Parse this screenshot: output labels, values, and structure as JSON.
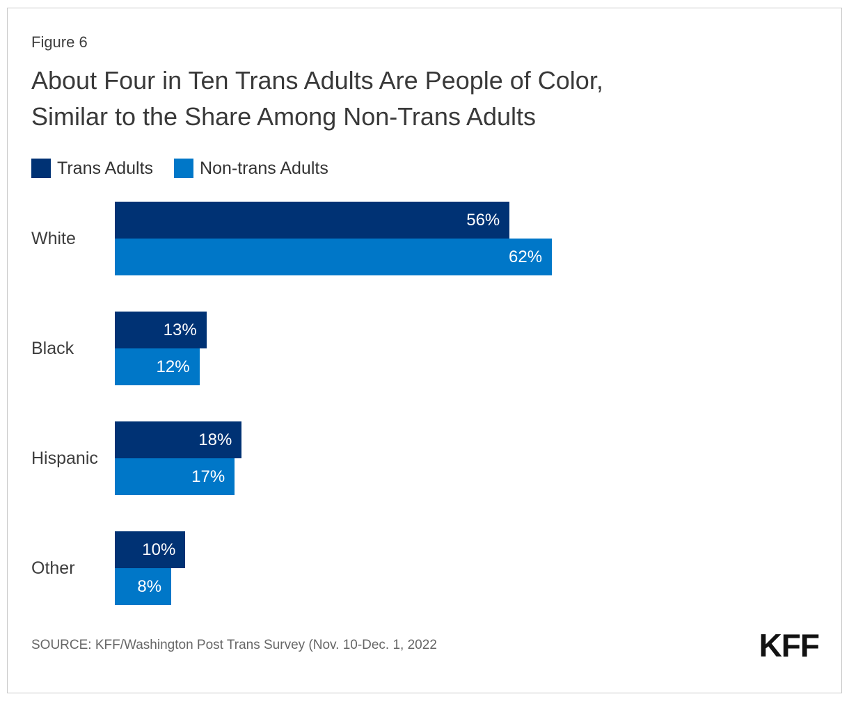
{
  "figure_label": "Figure 6",
  "title": {
    "line1": "About Four in Ten Trans Adults Are People of Color,",
    "line2": "Similar to the Share Among Non-Trans Adults"
  },
  "legend": {
    "items": [
      {
        "label": "Trans Adults",
        "color": "#003274"
      },
      {
        "label": "Non-trans Adults",
        "color": "#0077C8"
      }
    ]
  },
  "chart_data": {
    "type": "bar",
    "orientation": "horizontal",
    "title": "About Four in Ten Trans Adults Are People of Color, Similar to the Share Among Non-Trans Adults",
    "categories": [
      "White",
      "Black",
      "Hispanic",
      "Other"
    ],
    "series": [
      {
        "name": "Trans Adults",
        "color": "#003274",
        "values": [
          56,
          13,
          18,
          10
        ]
      },
      {
        "name": "Non-trans Adults",
        "color": "#0077C8",
        "values": [
          62,
          12,
          17,
          8
        ]
      }
    ],
    "value_suffix": "%",
    "xlim": [
      0,
      100
    ],
    "grid": false,
    "legend_position": "top-left",
    "value_labels": "inside-end-white"
  },
  "footer": {
    "source": "SOURCE: KFF/Washington Post Trans Survey (Nov. 10-Dec. 1, 2022",
    "logo": "KFF"
  }
}
